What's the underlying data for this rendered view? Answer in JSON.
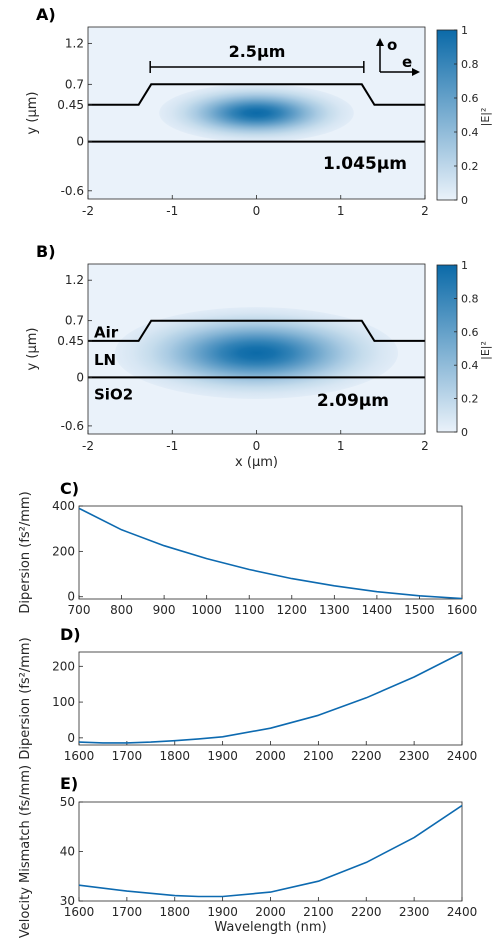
{
  "chart_data": [
    {
      "id": "A",
      "type": "heatmap",
      "panel_label": "A)",
      "ylabel": "y (μm)",
      "xlabel": "",
      "xlim": [
        -2,
        2
      ],
      "ylim": [
        -0.7,
        1.4
      ],
      "x_ticks": [
        -2,
        -1,
        0,
        1,
        2
      ],
      "y_ticks": [
        -0.6,
        0,
        0.45,
        0.7,
        1.2
      ],
      "x_tick_labels": [
        "-2",
        "-1",
        "0",
        "1",
        "2"
      ],
      "y_tick_labels": [
        "-0.6",
        "0",
        "0.45",
        "0.7",
        "1.2"
      ],
      "colorbar": {
        "label": "|E|²",
        "ticks": [
          0,
          0.2,
          0.4,
          0.6,
          0.8,
          1
        ],
        "tick_labels": [
          "0",
          "0.2",
          "0.4",
          "0.6",
          "0.8",
          "1"
        ],
        "color_low": "#eaf2fa",
        "color_high": "#0b6aa8"
      },
      "mode": {
        "center_x": 0,
        "center_y": 0.35,
        "sigma_x": 0.55,
        "sigma_y": 0.17
      },
      "waveguide_outline": [
        [
          -2,
          0.45
        ],
        [
          -1.4,
          0.45
        ],
        [
          -1.25,
          0.7
        ],
        [
          1.25,
          0.7
        ],
        [
          1.4,
          0.45
        ],
        [
          2,
          0.45
        ]
      ],
      "substrate_line_y": 0,
      "annotations": {
        "width_label": "2.5μm",
        "width_from": -1.25,
        "width_to": 1.25,
        "wavelength_label": "1.045μm",
        "axis_o": "o",
        "axis_e": "e"
      }
    },
    {
      "id": "B",
      "type": "heatmap",
      "panel_label": "B)",
      "ylabel": "y (μm)",
      "xlabel": "x (μm)",
      "xlim": [
        -2,
        2
      ],
      "ylim": [
        -0.7,
        1.4
      ],
      "x_ticks": [
        -2,
        -1,
        0,
        1,
        2
      ],
      "y_ticks": [
        -0.6,
        0,
        0.45,
        0.7,
        1.2
      ],
      "x_tick_labels": [
        "-2",
        "-1",
        "0",
        "1",
        "2"
      ],
      "y_tick_labels": [
        "-0.6",
        "0",
        "0.45",
        "0.7",
        "1.2"
      ],
      "colorbar": {
        "label": "|E|²",
        "ticks": [
          0,
          0.2,
          0.4,
          0.6,
          0.8,
          1
        ],
        "tick_labels": [
          "0",
          "0.2",
          "0.4",
          "0.6",
          "0.8",
          "1"
        ],
        "color_low": "#eaf2fa",
        "color_high": "#0b6aa8"
      },
      "mode": {
        "center_x": 0,
        "center_y": 0.3,
        "sigma_x": 0.8,
        "sigma_y": 0.27
      },
      "waveguide_outline": [
        [
          -2,
          0.45
        ],
        [
          -1.4,
          0.45
        ],
        [
          -1.25,
          0.7
        ],
        [
          1.25,
          0.7
        ],
        [
          1.4,
          0.45
        ],
        [
          2,
          0.45
        ]
      ],
      "substrate_line_y": 0,
      "annotations": {
        "region_air": "Air",
        "region_ln": "LN",
        "region_sio2": "SiO2",
        "wavelength_label": "2.09μm"
      }
    },
    {
      "id": "C",
      "type": "line",
      "panel_label": "C)",
      "ylabel": "Dipersion (fs²/mm)",
      "xlabel": "",
      "xlim": [
        700,
        1600
      ],
      "ylim": [
        -10,
        400
      ],
      "x_ticks": [
        700,
        800,
        900,
        1000,
        1100,
        1200,
        1300,
        1400,
        1500,
        1600
      ],
      "y_ticks": [
        0,
        200,
        400
      ],
      "series": [
        {
          "x": [
            700,
            800,
            900,
            1000,
            1100,
            1200,
            1300,
            1400,
            1500,
            1600
          ],
          "y": [
            390,
            295,
            225,
            168,
            120,
            80,
            48,
            22,
            4,
            -8
          ]
        }
      ]
    },
    {
      "id": "D",
      "type": "line",
      "panel_label": "D)",
      "ylabel": "Dipersion (fs²/mm)",
      "xlabel": "",
      "xlim": [
        1600,
        2400
      ],
      "ylim": [
        -20,
        240
      ],
      "x_ticks": [
        1600,
        1700,
        1800,
        1900,
        2000,
        2100,
        2200,
        2300,
        2400
      ],
      "y_ticks": [
        0,
        100,
        200
      ],
      "series": [
        {
          "x": [
            1600,
            1650,
            1700,
            1750,
            1800,
            1850,
            1900,
            2000,
            2100,
            2200,
            2300,
            2400
          ],
          "y": [
            -12,
            -14,
            -14,
            -12,
            -8,
            -3,
            3,
            27,
            63,
            112,
            170,
            238
          ]
        }
      ]
    },
    {
      "id": "E",
      "type": "line",
      "panel_label": "E)",
      "ylabel": "Velocity Mismatch (fs/mm)",
      "xlabel": "Wavelength (nm)",
      "xlim": [
        1600,
        2400
      ],
      "ylim": [
        30,
        50
      ],
      "x_ticks": [
        1600,
        1700,
        1800,
        1900,
        2000,
        2100,
        2200,
        2300,
        2400
      ],
      "y_ticks": [
        30,
        40,
        50
      ],
      "series": [
        {
          "x": [
            1600,
            1700,
            1800,
            1850,
            1900,
            2000,
            2100,
            2200,
            2300,
            2400
          ],
          "y": [
            33.2,
            32.0,
            31.1,
            30.9,
            30.9,
            31.8,
            34.0,
            37.8,
            42.8,
            49.3
          ]
        }
      ]
    }
  ]
}
